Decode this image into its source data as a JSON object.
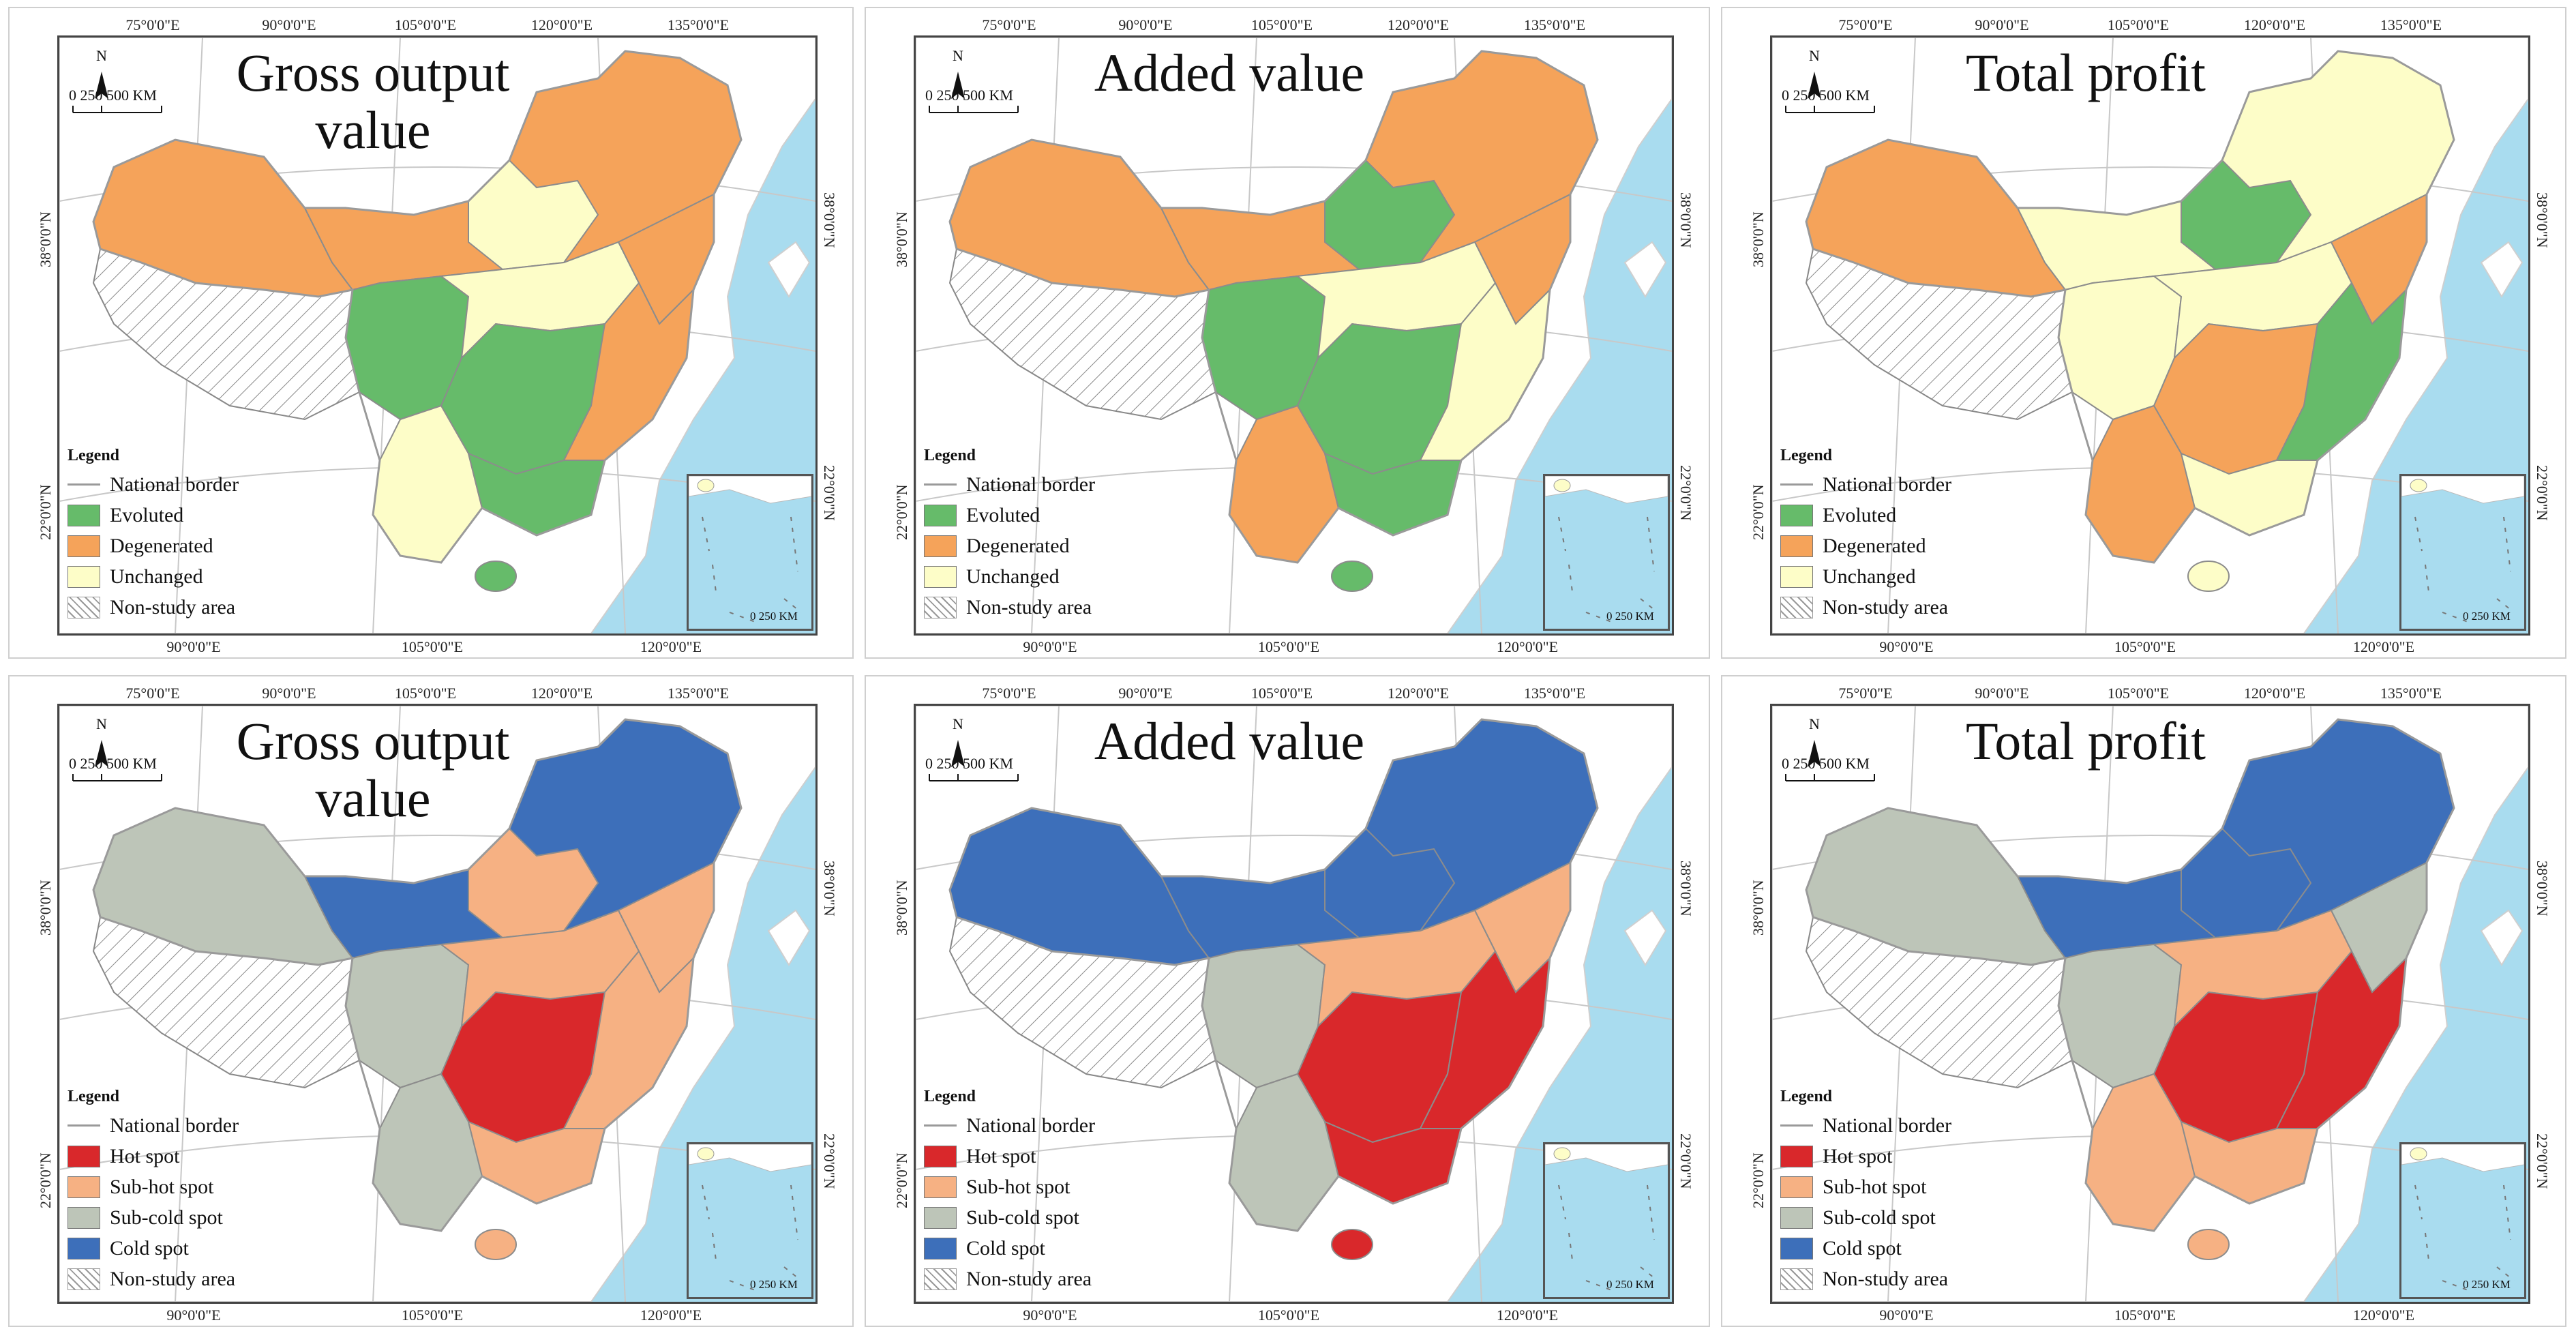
{
  "colors": {
    "evoluted": "#66bb6a",
    "degenerated": "#f5a35a",
    "unchanged": "#fdfdc8",
    "hot": "#d9282b",
    "subhot": "#f6b183",
    "subcold": "#bdc5b8",
    "cold": "#3d6fba",
    "sea": "#a9dcef",
    "land_outside": "#ffffff"
  },
  "graticule": {
    "top_lon": [
      "75°0'0\"E",
      "90°0'0\"E",
      "105°0'0\"E",
      "120°0'0\"E",
      "135°0'0\"E"
    ],
    "bottom_lon": [
      "90°0'0\"E",
      "105°0'0\"E",
      "120°0'0\"E"
    ],
    "lat": [
      "38°0'0\"N",
      "22°0'0\"N"
    ]
  },
  "north_label": "N",
  "scale_bar": "0   250  500 KM",
  "inset_scale": "0   250 KM",
  "legend_title": "Legend",
  "panels": [
    {
      "title": "Gross output value",
      "legend": [
        "National border",
        "Evoluted",
        "Degenerated",
        "Unchanged",
        "Non-study area"
      ],
      "palette": [
        "degenerated",
        "degenerated",
        "evoluted",
        "unchanged",
        "unchanged",
        "degenerated",
        "evoluted",
        "degenerated",
        "unchanged",
        "evoluted"
      ]
    },
    {
      "title": "Added value",
      "legend": [
        "National border",
        "Evoluted",
        "Degenerated",
        "Unchanged",
        "Non-study area"
      ],
      "palette": [
        "degenerated",
        "degenerated",
        "evoluted",
        "evoluted",
        "unchanged",
        "degenerated",
        "evoluted",
        "unchanged",
        "degenerated",
        "evoluted"
      ]
    },
    {
      "title": "Total profit",
      "legend": [
        "National border",
        "Evoluted",
        "Degenerated",
        "Unchanged",
        "Non-study area"
      ],
      "palette": [
        "degenerated",
        "unchanged",
        "unchanged",
        "evoluted",
        "unchanged",
        "degenerated",
        "degenerated",
        "evoluted",
        "degenerated",
        "unchanged"
      ]
    },
    {
      "title": "Gross output value",
      "legend": [
        "National border",
        "Hot spot",
        "Sub-hot spot",
        "Sub-cold spot",
        "Cold spot",
        "Non-study area"
      ],
      "palette": [
        "subcold",
        "cold",
        "subcold",
        "subhot",
        "subhot",
        "subhot",
        "hot",
        "subhot",
        "subcold",
        "subhot"
      ]
    },
    {
      "title": "Added value",
      "legend": [
        "National border",
        "Hot spot",
        "Sub-hot spot",
        "Sub-cold spot",
        "Cold spot",
        "Non-study area"
      ],
      "palette": [
        "cold",
        "cold",
        "subcold",
        "cold",
        "subhot",
        "subhot",
        "hot",
        "hot",
        "subcold",
        "hot"
      ]
    },
    {
      "title": "Total profit",
      "legend": [
        "National border",
        "Hot spot",
        "Sub-hot spot",
        "Sub-cold spot",
        "Cold spot",
        "Non-study area"
      ],
      "palette": [
        "subcold",
        "cold",
        "subcold",
        "cold",
        "subhot",
        "subcold",
        "hot",
        "hot",
        "subhot",
        "subhot"
      ]
    }
  ]
}
